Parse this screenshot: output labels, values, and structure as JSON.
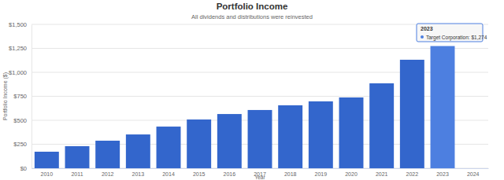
{
  "chart_data": {
    "type": "bar",
    "title": "Portfolio Income",
    "subtitle": "All dividends and distributions were reinvested",
    "x_label": "Year",
    "y_label": "Portfolio Income ($)",
    "categories": [
      "2010",
      "2011",
      "2012",
      "2013",
      "2014",
      "2015",
      "2016",
      "2017",
      "2018",
      "2019",
      "2020",
      "2021",
      "2022",
      "2023",
      "2024"
    ],
    "values": [
      172,
      230,
      287,
      352,
      434,
      508,
      565,
      607,
      656,
      697,
      738,
      885,
      1131,
      1274,
      null
    ],
    "colors": [
      "#3366cc",
      "#3366cc",
      "#3366cc",
      "#3366cc",
      "#3366cc",
      "#3366cc",
      "#3366cc",
      "#3366cc",
      "#3366cc",
      "#3366cc",
      "#3366cc",
      "#3366cc",
      "#3366cc",
      "#4d7fe0",
      "#3366cc"
    ],
    "ylim": [
      0,
      1500
    ],
    "yticks": [
      {
        "value": 0,
        "label": "$0"
      },
      {
        "value": 250,
        "label": "$250"
      },
      {
        "value": 500,
        "label": "$500"
      },
      {
        "value": 750,
        "label": "$750"
      },
      {
        "value": 1000,
        "label": "$1,000"
      },
      {
        "value": 1250,
        "label": "$1,250"
      },
      {
        "value": 1500,
        "label": "$1,500"
      }
    ],
    "grid": true,
    "annotations": [
      {
        "title": "2023",
        "text": "Target Corporation: $1,274"
      }
    ]
  }
}
